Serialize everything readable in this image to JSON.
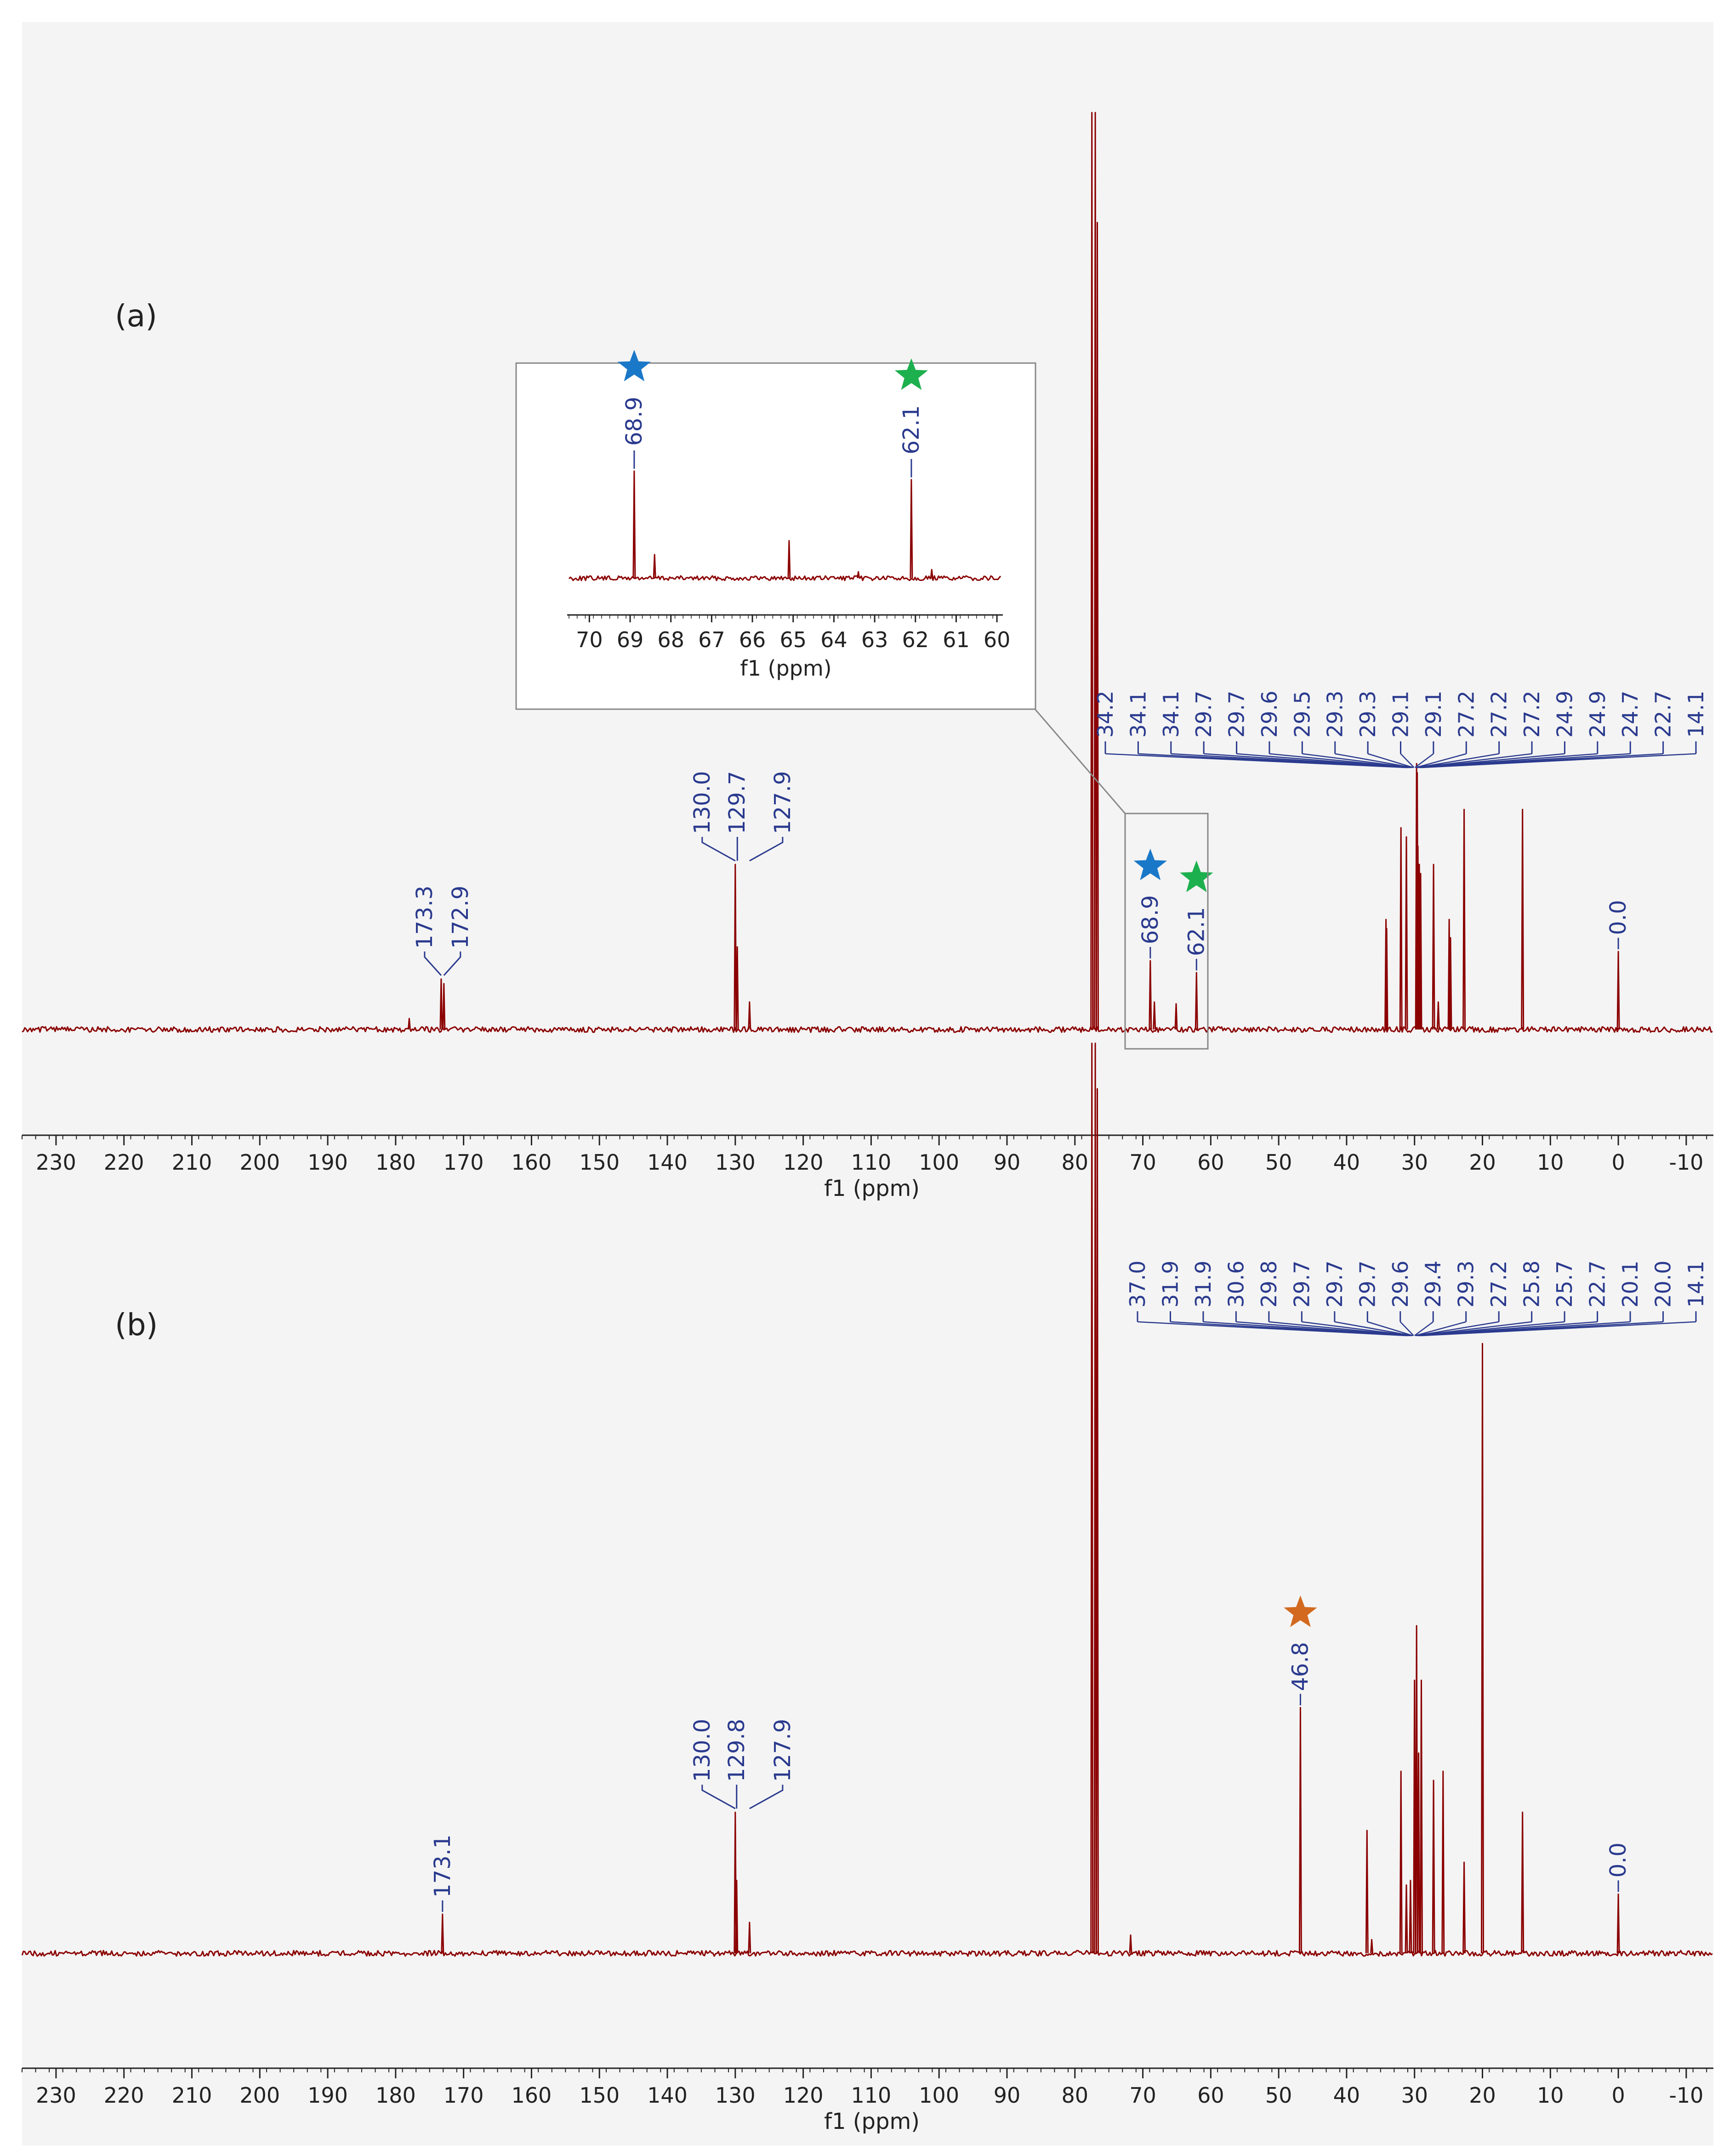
{
  "chart_data": [
    {
      "type": "line",
      "panel_label": "(a)",
      "title": "",
      "xlabel": "f1 (ppm)",
      "ylabel": "",
      "xlim": [
        235,
        -14
      ],
      "x_ticks": [
        "230",
        "220",
        "210",
        "200",
        "190",
        "180",
        "170",
        "160",
        "150",
        "140",
        "130",
        "120",
        "110",
        "100",
        "90",
        "80",
        "70",
        "60",
        "50",
        "40",
        "30",
        "20",
        "10",
        "0",
        "-10"
      ],
      "peaks": [
        {
          "ppm": 178.0,
          "height": 0.012
        },
        {
          "ppm": 173.3,
          "height": 0.055
        },
        {
          "ppm": 172.9,
          "height": 0.05
        },
        {
          "ppm": 130.0,
          "height": 0.18
        },
        {
          "ppm": 129.7,
          "height": 0.09
        },
        {
          "ppm": 127.9,
          "height": 0.03
        },
        {
          "ppm": 77.5,
          "height": 1.0
        },
        {
          "ppm": 77.0,
          "height": 1.0
        },
        {
          "ppm": 76.7,
          "height": 0.88
        },
        {
          "ppm": 68.9,
          "height": 0.075
        },
        {
          "ppm": 68.3,
          "height": 0.03
        },
        {
          "ppm": 65.1,
          "height": 0.028
        },
        {
          "ppm": 62.1,
          "height": 0.062
        },
        {
          "ppm": 34.2,
          "height": 0.12
        },
        {
          "ppm": 34.1,
          "height": 0.11
        },
        {
          "ppm": 32.0,
          "height": 0.22
        },
        {
          "ppm": 31.2,
          "height": 0.21
        },
        {
          "ppm": 29.7,
          "height": 0.29
        },
        {
          "ppm": 29.6,
          "height": 0.28
        },
        {
          "ppm": 29.5,
          "height": 0.2
        },
        {
          "ppm": 29.3,
          "height": 0.18
        },
        {
          "ppm": 29.1,
          "height": 0.17
        },
        {
          "ppm": 27.2,
          "height": 0.18
        },
        {
          "ppm": 26.5,
          "height": 0.03
        },
        {
          "ppm": 24.9,
          "height": 0.12
        },
        {
          "ppm": 24.7,
          "height": 0.1
        },
        {
          "ppm": 22.7,
          "height": 0.24
        },
        {
          "ppm": 14.1,
          "height": 0.24
        },
        {
          "ppm": 0.0,
          "height": 0.085
        }
      ],
      "peak_labels": [
        {
          "text": "173.3",
          "group": "a-carbonyl"
        },
        {
          "text": "172.9",
          "group": "a-carbonyl"
        },
        {
          "text": "130.0",
          "group": "a-olefin"
        },
        {
          "text": "129.7",
          "group": "a-olefin"
        },
        {
          "text": "127.9",
          "group": "a-olefin"
        },
        {
          "text": "68.9",
          "group": "a-single",
          "star_color": "#1a78c8"
        },
        {
          "text": "62.1",
          "group": "a-single",
          "star_color": "#1db04e"
        },
        {
          "text": "0.0",
          "group": "a-single"
        }
      ],
      "aliphatic_labels": [
        "34.2",
        "34.1",
        "34.1",
        "29.7",
        "29.7",
        "29.6",
        "29.5",
        "29.3",
        "29.3",
        "29.1",
        "29.1",
        "27.2",
        "27.2",
        "27.2",
        "24.9",
        "24.9",
        "24.7",
        "22.7",
        "14.1"
      ],
      "inset": {
        "xlabel": "f1 (ppm)",
        "xlim": [
          70.5,
          59.9
        ],
        "x_ticks": [
          "70",
          "69",
          "68",
          "67",
          "66",
          "65",
          "64",
          "63",
          "62",
          "61",
          "60"
        ],
        "labels": [
          {
            "text": "68.9",
            "star_color": "#1a78c8"
          },
          {
            "text": "62.1",
            "star_color": "#1db04e"
          }
        ],
        "peaks": [
          {
            "ppm": 68.9,
            "height": 1.0
          },
          {
            "ppm": 68.4,
            "height": 0.22
          },
          {
            "ppm": 65.1,
            "height": 0.35
          },
          {
            "ppm": 63.4,
            "height": 0.06
          },
          {
            "ppm": 62.1,
            "height": 0.92
          },
          {
            "ppm": 61.6,
            "height": 0.08
          }
        ]
      }
    },
    {
      "type": "line",
      "panel_label": "(b)",
      "title": "",
      "xlabel": "f1 (ppm)",
      "ylabel": "",
      "xlim": [
        235,
        -14
      ],
      "x_ticks": [
        "230",
        "220",
        "210",
        "200",
        "190",
        "180",
        "170",
        "160",
        "150",
        "140",
        "130",
        "120",
        "110",
        "100",
        "90",
        "80",
        "70",
        "60",
        "50",
        "40",
        "30",
        "20",
        "10",
        "0",
        "-10"
      ],
      "peaks": [
        {
          "ppm": 173.1,
          "height": 0.043
        },
        {
          "ppm": 130.0,
          "height": 0.155
        },
        {
          "ppm": 129.8,
          "height": 0.08
        },
        {
          "ppm": 127.9,
          "height": 0.034
        },
        {
          "ppm": 77.5,
          "height": 1.0
        },
        {
          "ppm": 77.0,
          "height": 1.0
        },
        {
          "ppm": 76.7,
          "height": 0.95
        },
        {
          "ppm": 71.8,
          "height": 0.02
        },
        {
          "ppm": 46.8,
          "height": 0.27
        },
        {
          "ppm": 37.0,
          "height": 0.135
        },
        {
          "ppm": 36.3,
          "height": 0.015
        },
        {
          "ppm": 32.0,
          "height": 0.2
        },
        {
          "ppm": 31.2,
          "height": 0.075
        },
        {
          "ppm": 30.6,
          "height": 0.08
        },
        {
          "ppm": 30.0,
          "height": 0.3
        },
        {
          "ppm": 29.7,
          "height": 0.36
        },
        {
          "ppm": 29.4,
          "height": 0.22
        },
        {
          "ppm": 29.0,
          "height": 0.3
        },
        {
          "ppm": 27.2,
          "height": 0.19
        },
        {
          "ppm": 25.8,
          "height": 0.2
        },
        {
          "ppm": 22.7,
          "height": 0.1
        },
        {
          "ppm": 20.0,
          "height": 0.67
        },
        {
          "ppm": 14.1,
          "height": 0.155
        },
        {
          "ppm": 0.0,
          "height": 0.065
        }
      ],
      "peak_labels": [
        {
          "text": "173.1",
          "group": "b-single"
        },
        {
          "text": "130.0",
          "group": "b-olefin"
        },
        {
          "text": "129.8",
          "group": "b-olefin"
        },
        {
          "text": "127.9",
          "group": "b-olefin"
        },
        {
          "text": "46.8",
          "group": "b-single",
          "star_color": "#d2691e"
        },
        {
          "text": "0.0",
          "group": "b-single"
        }
      ],
      "aliphatic_labels": [
        "37.0",
        "31.9",
        "31.9",
        "30.6",
        "29.8",
        "29.7",
        "29.7",
        "29.7",
        "29.6",
        "29.4",
        "29.3",
        "27.2",
        "25.8",
        "25.7",
        "22.7",
        "20.1",
        "20.0",
        "14.1"
      ]
    }
  ],
  "colors": {
    "spectrum": "#8b0000",
    "labels": "#2a3a8e",
    "axis": "#222222",
    "plot_background": "#f4f4f4",
    "inset_border": "#888888"
  }
}
